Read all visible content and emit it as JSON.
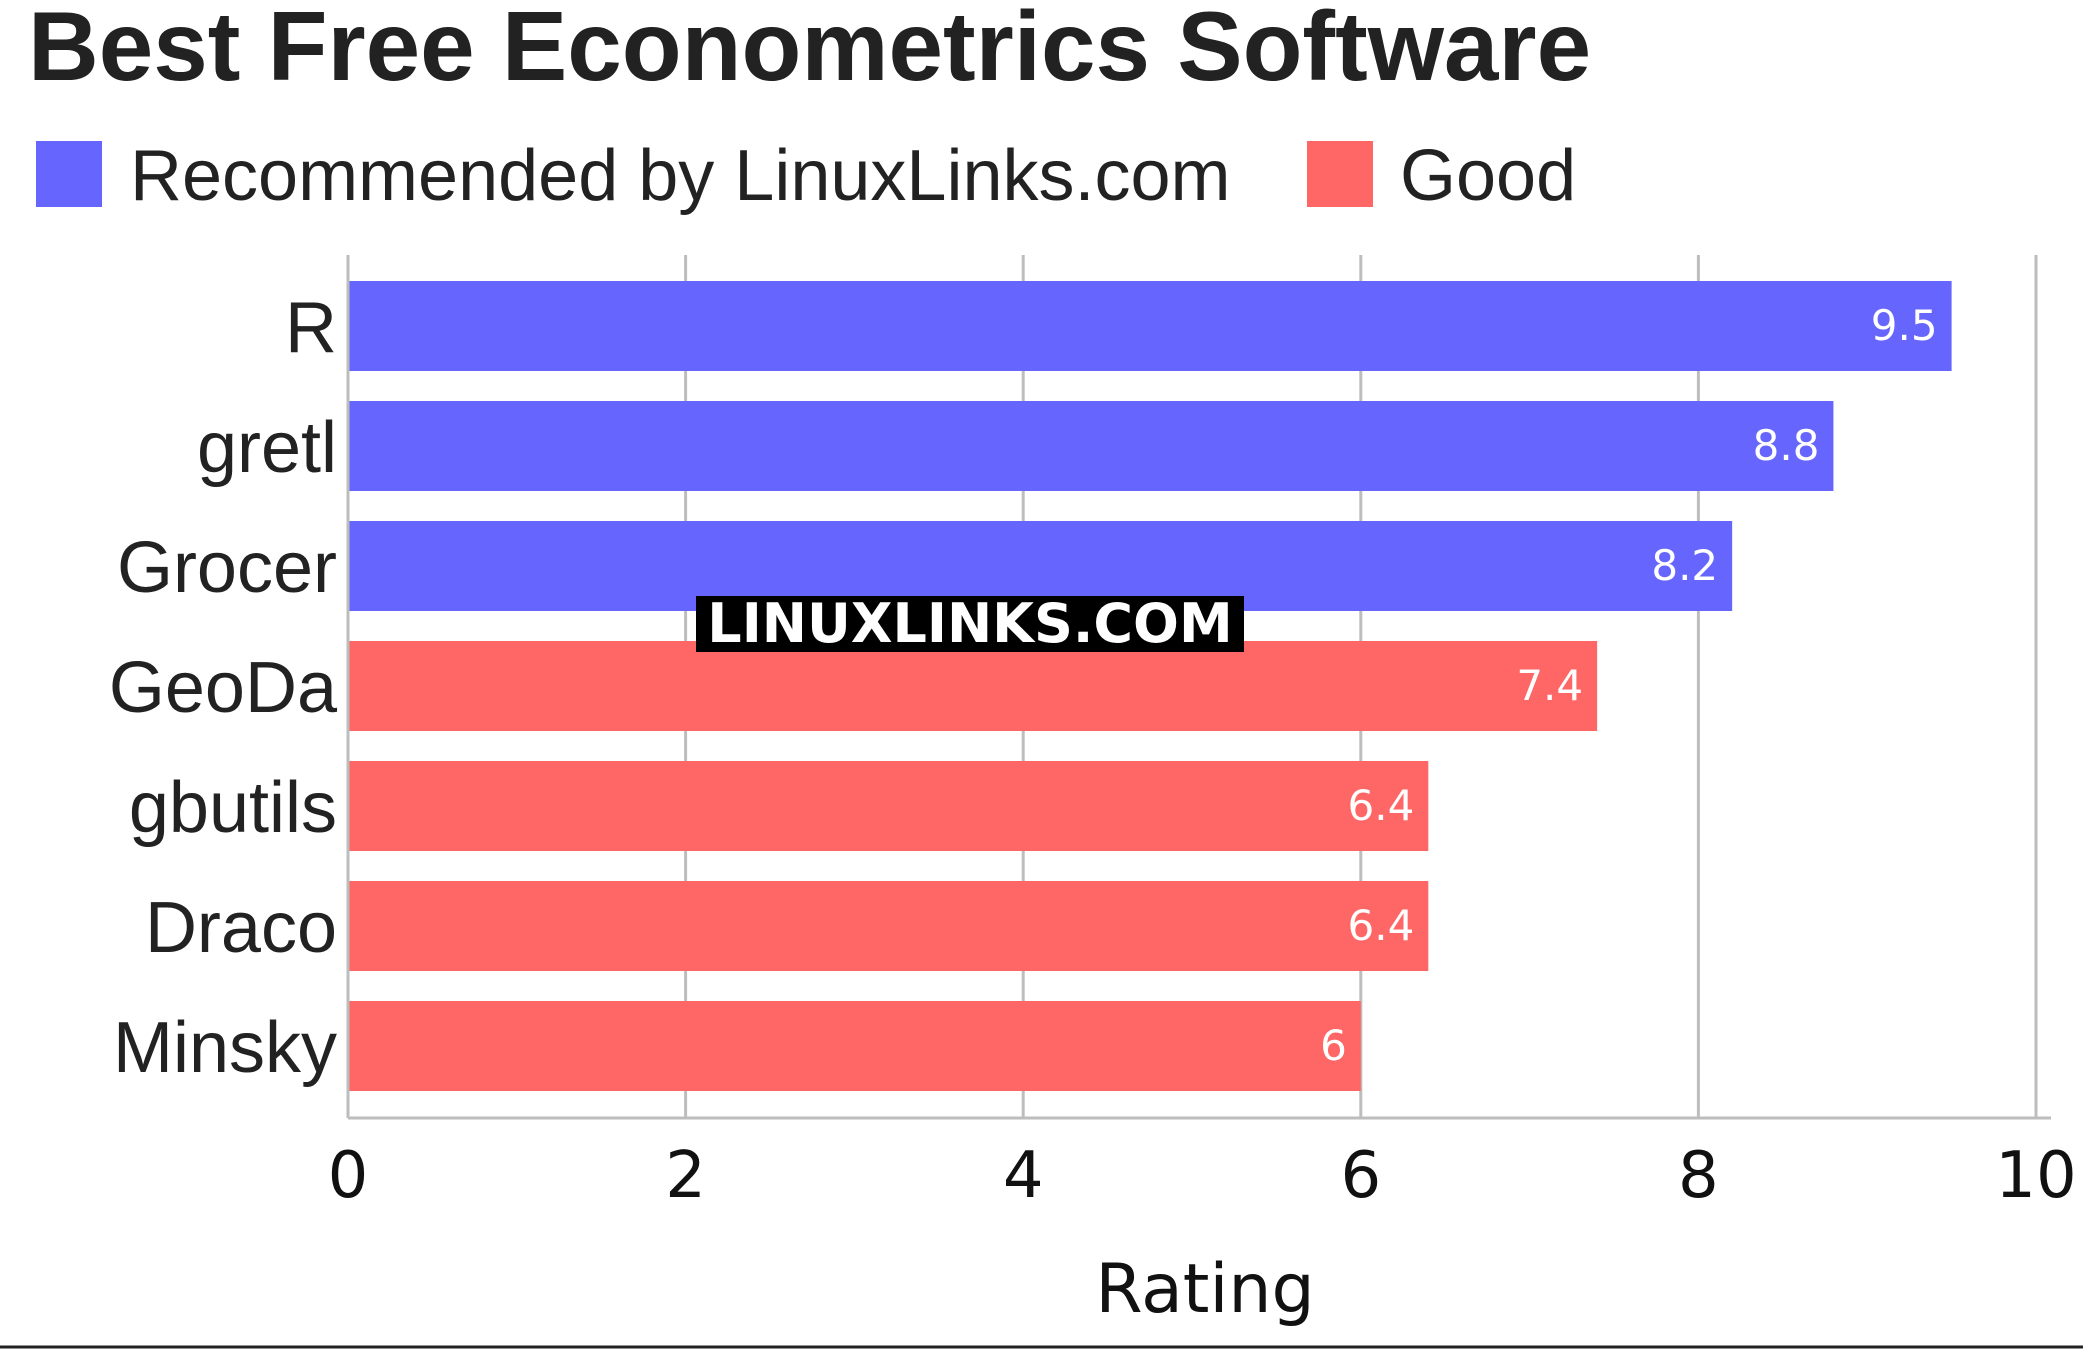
{
  "chart_data": {
    "type": "bar",
    "orientation": "horizontal",
    "title": "Best Free Econometrics Software",
    "xlabel": "Rating",
    "ylabel": "",
    "xlim": [
      0,
      10
    ],
    "x_ticks": [
      "0",
      "2",
      "4",
      "6",
      "8",
      "10"
    ],
    "grid": "vertical",
    "legend_position": "top-left",
    "legend": [
      {
        "name": "Recommended by LinuxLinks.com",
        "color": "#6666ff"
      },
      {
        "name": "Good",
        "color": "#ff6666"
      }
    ],
    "categories": [
      "R",
      "gretl",
      "Grocer",
      "GeoDa",
      "gbutils",
      "Draco",
      "Minsky"
    ],
    "values": [
      9.5,
      8.8,
      8.2,
      7.4,
      6.4,
      6.4,
      6
    ],
    "value_labels": [
      "9.5",
      "8.8",
      "8.2",
      "7.4",
      "6.4",
      "6.4",
      "6"
    ],
    "bar_group": [
      "Recommended by LinuxLinks.com",
      "Recommended by LinuxLinks.com",
      "Recommended by LinuxLinks.com",
      "Good",
      "Good",
      "Good",
      "Good"
    ]
  },
  "watermark": "LINUXLINKS.COM"
}
